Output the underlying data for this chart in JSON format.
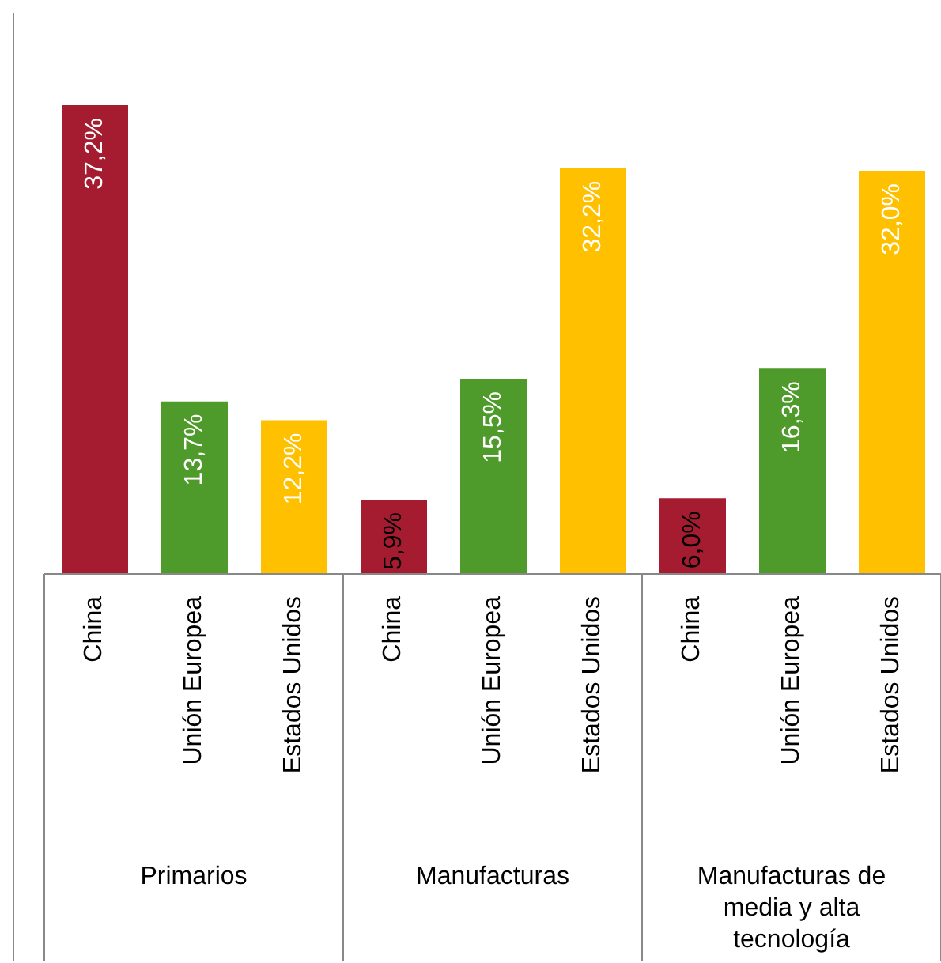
{
  "chart_data": {
    "type": "bar",
    "categories": [
      "Primarios",
      "Manufacturas",
      "Manufacturas de media y alta tecnología"
    ],
    "series": [
      {
        "name": "China",
        "color": "#a51c30",
        "values": [
          37.2,
          5.9,
          6.0
        ],
        "value_labels": [
          "37,2%",
          "5,9%",
          "6,0%"
        ]
      },
      {
        "name": "Unión Europea",
        "color": "#4e9a2a",
        "values": [
          13.7,
          15.5,
          16.3
        ],
        "value_labels": [
          "13,7%",
          "15,5%",
          "16,3%"
        ]
      },
      {
        "name": "Estados Unidos",
        "color": "#ffc000",
        "values": [
          12.2,
          32.2,
          32.0
        ],
        "value_labels": [
          "12,2%",
          "32,2%",
          "32,0%"
        ]
      }
    ],
    "legend": false,
    "grid": false
  }
}
